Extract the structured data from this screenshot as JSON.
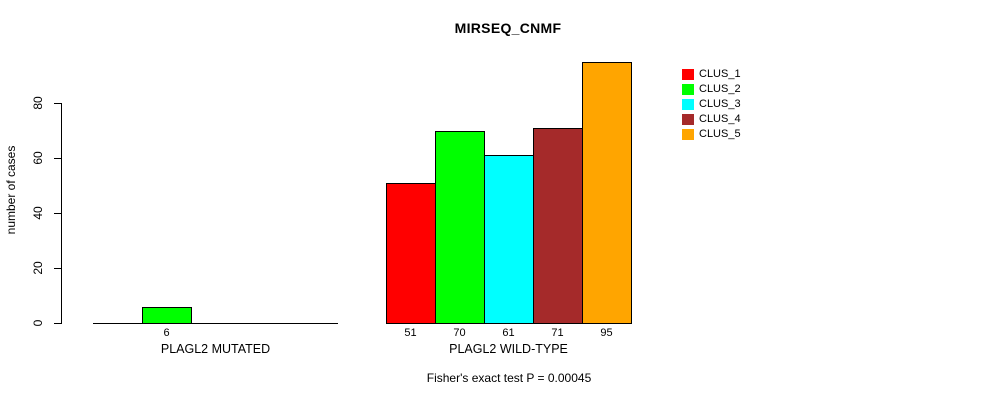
{
  "chart_data": {
    "type": "bar",
    "title": "MIRSEQ_CNMF",
    "ylabel": "number of cases",
    "xlabel": "",
    "yticks": [
      0,
      20,
      40,
      60,
      80
    ],
    "ylim": [
      0,
      97
    ],
    "grid": false,
    "legend_position": "right",
    "bar_value_labels_shown": true,
    "categories": [
      "PLAGL2 MUTATED",
      "PLAGL2 WILD-TYPE"
    ],
    "series": [
      {
        "name": "CLUS_1",
        "color": "#FF0000",
        "values": [
          0,
          51
        ]
      },
      {
        "name": "CLUS_2",
        "color": "#00FF00",
        "values": [
          6,
          70
        ]
      },
      {
        "name": "CLUS_3",
        "color": "#00FFFF",
        "values": [
          0,
          61
        ]
      },
      {
        "name": "CLUS_4",
        "color": "#A52A2A",
        "values": [
          0,
          71
        ]
      },
      {
        "name": "CLUS_5",
        "color": "#FFA500",
        "values": [
          0,
          95
        ]
      }
    ],
    "annotation": "Fisher's exact test P = 0.00045"
  }
}
